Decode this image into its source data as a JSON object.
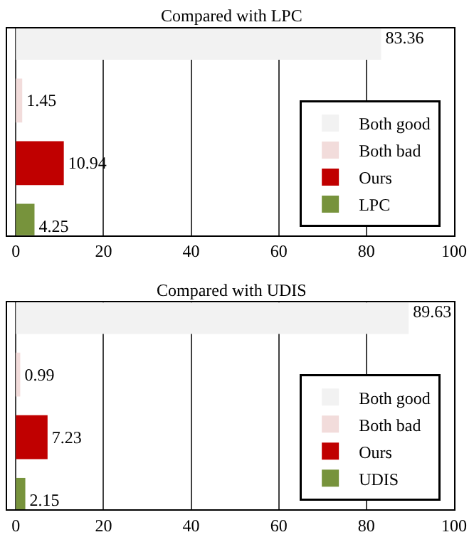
{
  "chart_data": [
    {
      "type": "bar",
      "orientation": "horizontal",
      "title": "Compared with LPC",
      "categories": [
        null,
        null,
        null,
        null
      ],
      "series": [
        {
          "name": "Both good",
          "color": "#f2f2f2",
          "values": [
            83.36,
            null,
            null,
            null
          ]
        },
        {
          "name": "Both bad",
          "color": "#f2dcdb",
          "values": [
            null,
            1.45,
            null,
            null
          ]
        },
        {
          "name": "Ours",
          "color": "#c00000",
          "values": [
            null,
            null,
            10.94,
            null
          ]
        },
        {
          "name": "LPC",
          "color": "#77933c",
          "values": [
            null,
            null,
            null,
            4.25
          ]
        }
      ],
      "xlim": [
        -2,
        100
      ],
      "xticks": [
        0,
        20,
        40,
        60,
        80,
        100
      ],
      "grid": "x",
      "legend": "bottom right",
      "data_labels": true
    },
    {
      "type": "bar",
      "orientation": "horizontal",
      "title": "Compared with UDIS",
      "categories": [
        null,
        null,
        null,
        null
      ],
      "series": [
        {
          "name": "Both good",
          "color": "#f2f2f2",
          "values": [
            89.63,
            null,
            null,
            null
          ]
        },
        {
          "name": "Both bad",
          "color": "#f2dcdb",
          "values": [
            null,
            0.99,
            null,
            null
          ]
        },
        {
          "name": "Ours",
          "color": "#c00000",
          "values": [
            null,
            null,
            7.23,
            null
          ]
        },
        {
          "name": "UDIS",
          "color": "#77933c",
          "values": [
            null,
            null,
            null,
            2.15
          ]
        }
      ],
      "xlim": [
        -2,
        100
      ],
      "xticks": [
        0,
        20,
        40,
        60,
        80,
        100
      ],
      "grid": "x",
      "legend": "bottom right",
      "data_labels": true
    }
  ]
}
